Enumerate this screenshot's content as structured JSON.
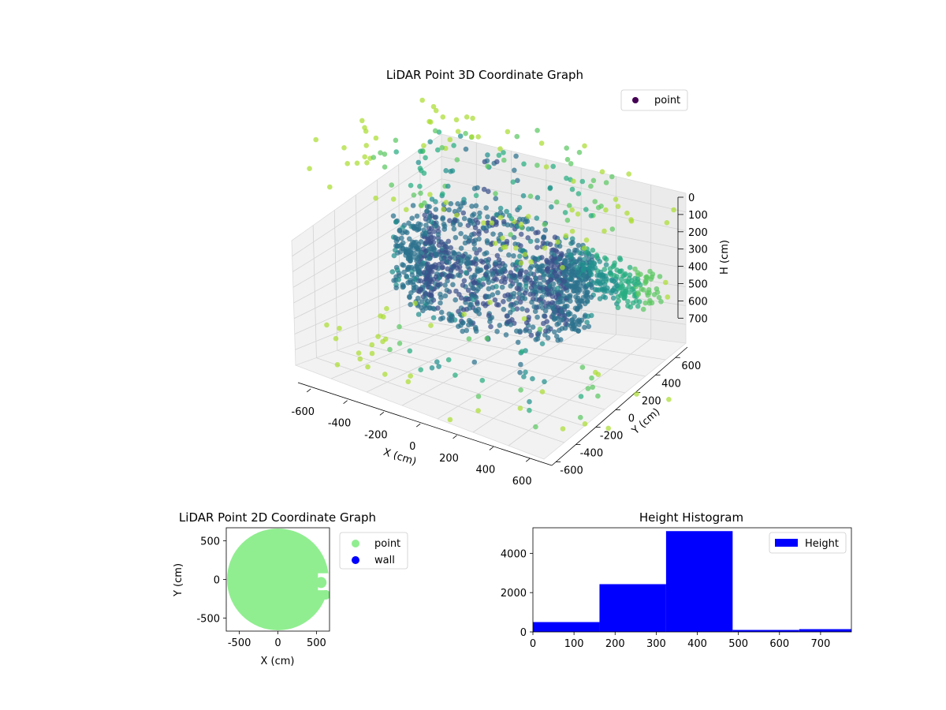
{
  "chart_data": [
    {
      "type": "scatter",
      "subtype": "3d",
      "title": "LiDAR Point 3D Coordinate Graph",
      "xlabel": "X (cm)",
      "ylabel": "Y (cm)",
      "zlabel": "H (cm)",
      "xlim": [
        -650,
        650
      ],
      "ylim": [
        -650,
        650
      ],
      "zlim": [
        0,
        720
      ],
      "z_inverted": true,
      "x_ticks": [
        "-600",
        "-400",
        "-200",
        "0",
        "200",
        "400",
        "600"
      ],
      "y_ticks": [
        "-600",
        "-400",
        "-200",
        "0",
        "200",
        "400",
        "600"
      ],
      "z_ticks": [
        "0",
        "100",
        "200",
        "300",
        "400",
        "500",
        "600",
        "700"
      ],
      "grid": true,
      "colormap": "viridis",
      "legend": {
        "position": "upper right",
        "entries": [
          {
            "label": "point",
            "color": "#440154"
          }
        ]
      },
      "series": [
        {
          "name": "point",
          "description_of_shape": "dense ring of points around the origin at heights 250-480 cm with a protrusion toward +X/+Y near 350 cm; sparse scatter down to 0-150 cm and up to 700 cm",
          "ring_radius_cm": [
            280,
            460
          ],
          "ring_height_cm": [
            250,
            480
          ],
          "lobe": {
            "x_range": [
              150,
              600
            ],
            "y_range": [
              200,
              560
            ],
            "height_cm": 350
          },
          "sparse_low": {
            "height_cm": [
              0,
              150
            ]
          },
          "sparse_high": {
            "height_cm": [
              600,
              720
            ]
          }
        }
      ]
    },
    {
      "type": "scatter",
      "title": "LiDAR Point 2D Coordinate Graph",
      "xlabel": "X (cm)",
      "ylabel": "Y (cm)",
      "xlim": [
        -670,
        670
      ],
      "ylim": [
        -670,
        670
      ],
      "x_ticks": [
        "-500",
        "0",
        "500"
      ],
      "y_ticks": [
        "-500",
        "0",
        "500"
      ],
      "legend": {
        "position": "outside right",
        "entries": [
          {
            "label": "point",
            "color": "#90ee90"
          },
          {
            "label": "wall",
            "color": "#0000ff"
          }
        ]
      },
      "series": [
        {
          "name": "point",
          "color": "#90ee90",
          "description_of_shape": "filled disk covering most of the plot, with notches cut out on the right side"
        },
        {
          "name": "wall",
          "color": "#0000ff",
          "values": []
        }
      ]
    },
    {
      "type": "bar",
      "subtype": "histogram",
      "title": "Height Histogram",
      "xlabel": "",
      "ylabel": "",
      "xlim": [
        0,
        775
      ],
      "ylim": [
        0,
        5300
      ],
      "x_ticks": [
        "0",
        "100",
        "200",
        "300",
        "400",
        "500",
        "600",
        "700"
      ],
      "y_ticks": [
        "0",
        "2000",
        "4000"
      ],
      "color": "#0000ff",
      "legend": {
        "position": "upper right",
        "entries": [
          {
            "label": "Height",
            "color": "#0000ff"
          }
        ]
      },
      "bins": [
        {
          "x0": 0,
          "x1": 162,
          "count": 500
        },
        {
          "x0": 162,
          "x1": 324,
          "count": 2430
        },
        {
          "x0": 324,
          "x1": 486,
          "count": 5130
        },
        {
          "x0": 486,
          "x1": 648,
          "count": 100
        },
        {
          "x0": 648,
          "x1": 775,
          "count": 140
        }
      ]
    }
  ]
}
